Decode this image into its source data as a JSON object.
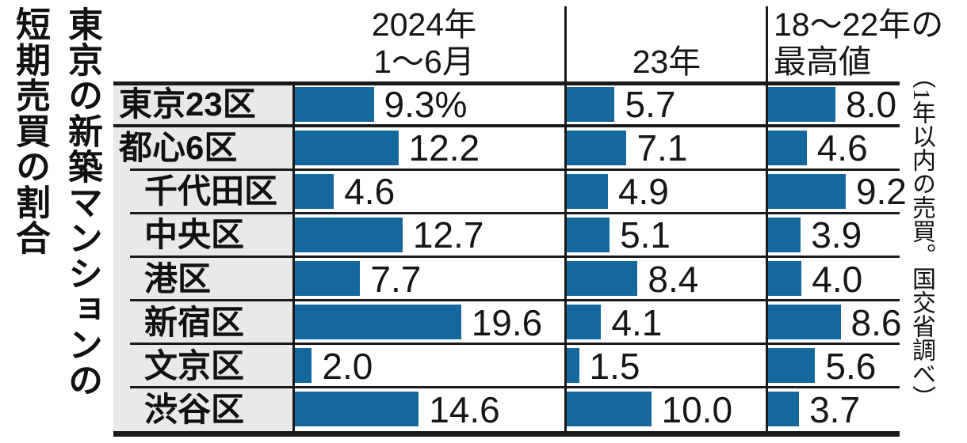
{
  "title": {
    "line1": "東京の新築マンションの",
    "line2": "短期売買の割合"
  },
  "header": {
    "col1": {
      "line1": "2024年",
      "line2": "1〜6月"
    },
    "col2": {
      "line1": "",
      "line2": "23年"
    },
    "col3": {
      "line1": "18〜22年の",
      "line2": "最高値"
    }
  },
  "side_note": "（1年以内の売買。国交省調べ）",
  "colors": {
    "bar": "#15689C",
    "label_bg": "#E9E9E9",
    "line": "#1A1A1A"
  },
  "chart_data": {
    "type": "bar",
    "orientation": "horizontal",
    "unit": "%",
    "title": "東京の新築マンションの短期売買の割合",
    "source": "（1年以内の売買。国交省調べ）",
    "categories": [
      "東京23区",
      "都心6区",
      "千代田区",
      "中央区",
      "港区",
      "新宿区",
      "文京区",
      "渋谷区"
    ],
    "indent": [
      false,
      false,
      true,
      true,
      true,
      true,
      true,
      true
    ],
    "series": [
      {
        "name": "2024年1〜6月",
        "values": [
          9.3,
          12.2,
          4.6,
          12.7,
          7.7,
          19.6,
          2.0,
          14.6
        ],
        "labels": [
          "9.3%",
          "12.2",
          "4.6",
          "12.7",
          "7.7",
          "19.6",
          "2.0",
          "14.6"
        ]
      },
      {
        "name": "23年",
        "values": [
          5.7,
          7.1,
          4.9,
          5.1,
          8.4,
          4.1,
          1.5,
          10.0
        ],
        "labels": [
          "5.7",
          "7.1",
          "4.9",
          "5.1",
          "8.4",
          "4.1",
          "1.5",
          "10.0"
        ]
      },
      {
        "name": "18〜22年の最高値",
        "values": [
          8.0,
          4.6,
          9.2,
          3.9,
          4.0,
          8.6,
          5.6,
          3.7
        ],
        "labels": [
          "8.0",
          "4.6",
          "9.2",
          "3.9",
          "4.0",
          "8.6",
          "5.6",
          "3.7"
        ]
      }
    ],
    "xlim": [
      0,
      21
    ],
    "grid": false,
    "legend_position": "column-headers"
  }
}
